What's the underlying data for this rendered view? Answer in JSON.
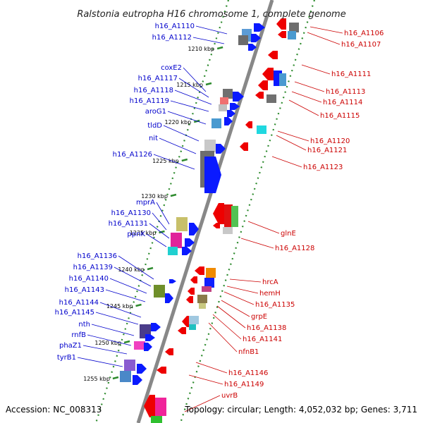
{
  "title": "Ralstonia eutropha H16 chromosome 1, complete genome",
  "accession": "Accession: NC_008313",
  "summary": "Topology: circular; Length: 4,052,032 bp; Genes: 3,711",
  "colors": {
    "left_label": "#0000cc",
    "right_label": "#cc0000",
    "backbone": "#888888",
    "tick": "#2e8b2e"
  },
  "kbp_marks": [
    "1210 kbp",
    "1215 kbp",
    "1220 kbp",
    "1225 kbp",
    "1230 kbp",
    "1235 kbp",
    "1240 kbp",
    "1245 kbp",
    "1250 kbp",
    "1255 kbp"
  ],
  "left_labels": [
    "h16_A1110",
    "h16_A1112",
    "coxE2",
    "h16_A1117",
    "h16_A1118",
    "h16_A1119",
    "aroG1",
    "tldD",
    "nit",
    "h16_A1126",
    "mprA",
    "h16_A1130",
    "h16_A1131",
    "ppnK",
    "h16_A1136",
    "h16_A1139",
    "h16_A1140",
    "h16_A1143",
    "h16_A1144",
    "h16_A1145",
    "nth",
    "rnfB",
    "phaZ1",
    "tyrB1"
  ],
  "right_labels": [
    "h16_A1106",
    "h16_A1107",
    "h16_A1111",
    "h16_A1113",
    "h16_A1114",
    "h16_A1115",
    "h16_A1120",
    "h16_A1121",
    "h16_A1123",
    "glnE",
    "h16_A1128",
    "hrcA",
    "hemH",
    "h16_A1135",
    "grpE",
    "h16_A1138",
    "h16_A1141",
    "nfnB1",
    "h16_A1146",
    "h16_A1149",
    "uvrB"
  ]
}
